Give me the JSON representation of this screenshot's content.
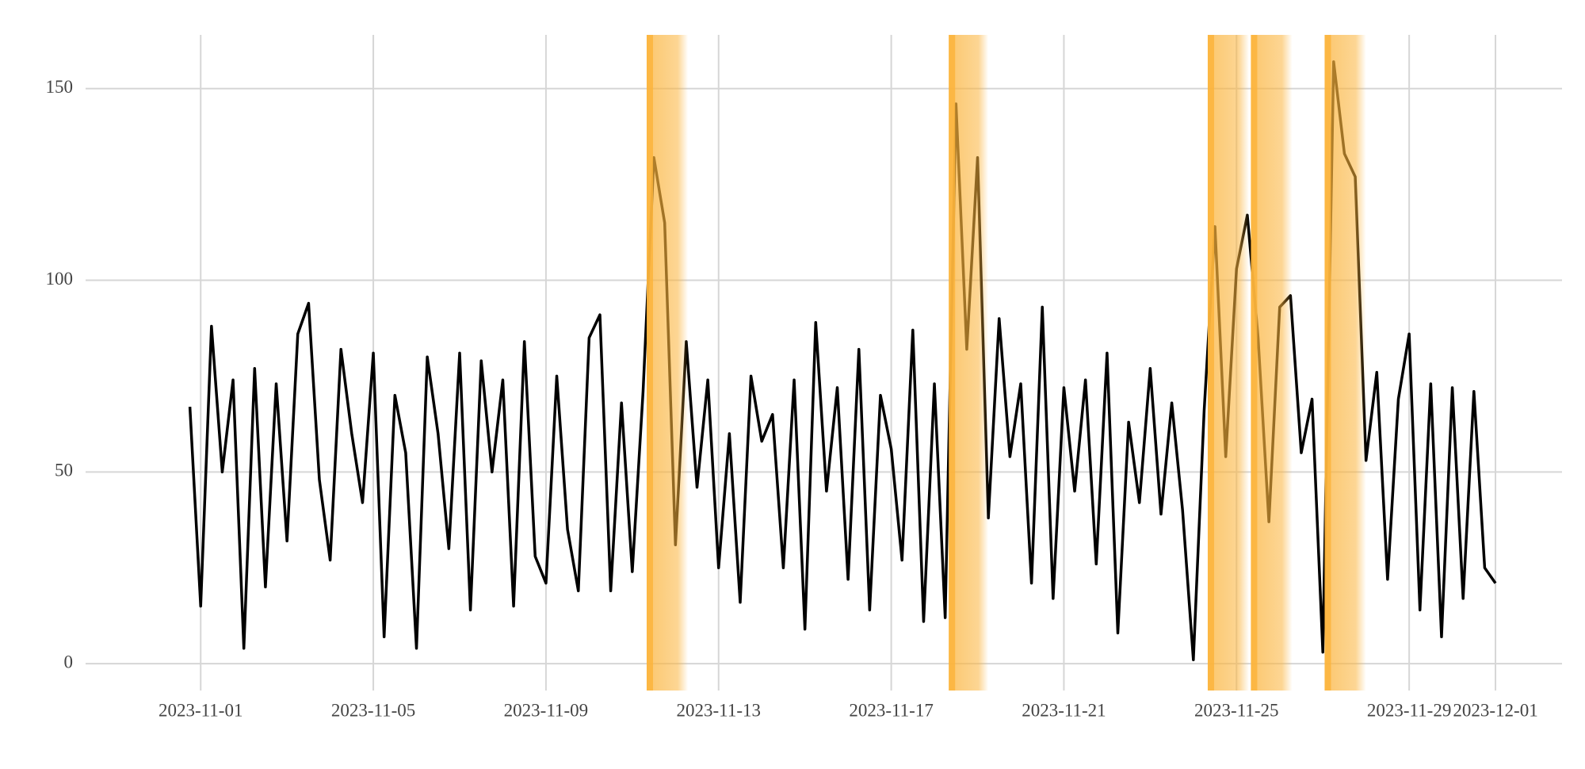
{
  "chart_data": {
    "type": "line",
    "x": [
      "2023-10-31 18:00",
      "2023-11-01 00:00",
      "2023-11-01 06:00",
      "2023-11-01 12:00",
      "2023-11-01 18:00",
      "2023-11-02 00:00",
      "2023-11-02 06:00",
      "2023-11-02 12:00",
      "2023-11-02 18:00",
      "2023-11-03 00:00",
      "2023-11-03 06:00",
      "2023-11-03 12:00",
      "2023-11-03 18:00",
      "2023-11-04 00:00",
      "2023-11-04 06:00",
      "2023-11-04 12:00",
      "2023-11-04 18:00",
      "2023-11-05 00:00",
      "2023-11-05 06:00",
      "2023-11-05 12:00",
      "2023-11-05 18:00",
      "2023-11-06 00:00",
      "2023-11-06 06:00",
      "2023-11-06 12:00",
      "2023-11-06 18:00",
      "2023-11-07 00:00",
      "2023-11-07 06:00",
      "2023-11-07 12:00",
      "2023-11-07 18:00",
      "2023-11-08 00:00",
      "2023-11-08 06:00",
      "2023-11-08 12:00",
      "2023-11-08 18:00",
      "2023-11-09 00:00",
      "2023-11-09 06:00",
      "2023-11-09 12:00",
      "2023-11-09 18:00",
      "2023-11-10 00:00",
      "2023-11-10 06:00",
      "2023-11-10 12:00",
      "2023-11-10 18:00",
      "2023-11-11 00:00",
      "2023-11-11 06:00",
      "2023-11-11 12:00",
      "2023-11-11 18:00",
      "2023-11-12 00:00",
      "2023-11-12 06:00",
      "2023-11-12 12:00",
      "2023-11-12 18:00",
      "2023-11-13 00:00",
      "2023-11-13 06:00",
      "2023-11-13 12:00",
      "2023-11-13 18:00",
      "2023-11-14 00:00",
      "2023-11-14 06:00",
      "2023-11-14 12:00",
      "2023-11-14 18:00",
      "2023-11-15 00:00",
      "2023-11-15 06:00",
      "2023-11-15 12:00",
      "2023-11-15 18:00",
      "2023-11-16 00:00",
      "2023-11-16 06:00",
      "2023-11-16 12:00",
      "2023-11-16 18:00",
      "2023-11-17 00:00",
      "2023-11-17 06:00",
      "2023-11-17 12:00",
      "2023-11-17 18:00",
      "2023-11-18 00:00",
      "2023-11-18 06:00",
      "2023-11-18 12:00",
      "2023-11-18 18:00",
      "2023-11-19 00:00",
      "2023-11-19 06:00",
      "2023-11-19 12:00",
      "2023-11-19 18:00",
      "2023-11-20 00:00",
      "2023-11-20 06:00",
      "2023-11-20 12:00",
      "2023-11-20 18:00",
      "2023-11-21 00:00",
      "2023-11-21 06:00",
      "2023-11-21 12:00",
      "2023-11-21 18:00",
      "2023-11-22 00:00",
      "2023-11-22 06:00",
      "2023-11-22 12:00",
      "2023-11-22 18:00",
      "2023-11-23 00:00",
      "2023-11-23 06:00",
      "2023-11-23 12:00",
      "2023-11-23 18:00",
      "2023-11-24 00:00",
      "2023-11-24 06:00",
      "2023-11-24 12:00",
      "2023-11-24 18:00",
      "2023-11-25 00:00",
      "2023-11-25 06:00",
      "2023-11-25 12:00",
      "2023-11-25 18:00",
      "2023-11-26 00:00",
      "2023-11-26 06:00",
      "2023-11-26 12:00",
      "2023-11-26 18:00",
      "2023-11-27 00:00",
      "2023-11-27 06:00",
      "2023-11-27 12:00",
      "2023-11-27 18:00",
      "2023-11-28 00:00",
      "2023-11-28 06:00",
      "2023-11-28 12:00",
      "2023-11-28 18:00",
      "2023-11-29 00:00",
      "2023-11-29 06:00",
      "2023-11-29 12:00",
      "2023-11-29 18:00",
      "2023-11-30 00:00",
      "2023-11-30 06:00",
      "2023-11-30 12:00",
      "2023-11-30 18:00",
      "2023-12-01 00:00"
    ],
    "values": [
      67,
      15,
      88,
      50,
      74,
      4,
      77,
      20,
      73,
      32,
      86,
      94,
      48,
      27,
      82,
      60,
      42,
      81,
      7,
      70,
      55,
      4,
      80,
      60,
      30,
      81,
      14,
      79,
      50,
      74,
      15,
      84,
      28,
      21,
      75,
      35,
      19,
      85,
      91,
      19,
      68,
      24,
      71,
      132,
      115,
      31,
      84,
      46,
      74,
      25,
      60,
      16,
      75,
      58,
      65,
      25,
      74,
      9,
      89,
      45,
      72,
      22,
      82,
      14,
      70,
      56,
      27,
      87,
      11,
      73,
      12,
      146,
      82,
      132,
      38,
      90,
      54,
      73,
      21,
      93,
      17,
      72,
      45,
      74,
      26,
      81,
      8,
      63,
      42,
      77,
      39,
      68,
      40,
      1,
      66,
      114,
      54,
      103,
      117,
      85,
      37,
      93,
      96,
      55,
      69,
      3,
      157,
      133,
      127,
      53,
      76,
      22,
      69,
      86,
      14,
      73,
      7,
      72,
      17,
      71,
      25,
      21
    ],
    "color": "#000000",
    "highlights": [
      {
        "start": "2023-11-11 08:00",
        "end": "2023-11-12 07:00"
      },
      {
        "start": "2023-11-18 08:00",
        "end": "2023-11-19 06:00"
      },
      {
        "start": "2023-11-24 08:00",
        "end": "2023-11-25 07:00"
      },
      {
        "start": "2023-11-25 08:00",
        "end": "2023-11-26 07:00"
      },
      {
        "start": "2023-11-27 01:00",
        "end": "2023-11-28 00:00"
      }
    ],
    "highlight_color": "#fbb43c",
    "xlim": [
      "2023-10-29 08:00",
      "2023-12-02 13:00"
    ],
    "xticks": [
      "2023-11-01",
      "2023-11-05",
      "2023-11-09",
      "2023-11-13",
      "2023-11-17",
      "2023-11-21",
      "2023-11-25",
      "2023-11-29",
      "2023-12-01"
    ],
    "ylim": [
      -7,
      164
    ],
    "yticks": [
      0,
      50,
      100,
      150
    ],
    "grid": true
  }
}
